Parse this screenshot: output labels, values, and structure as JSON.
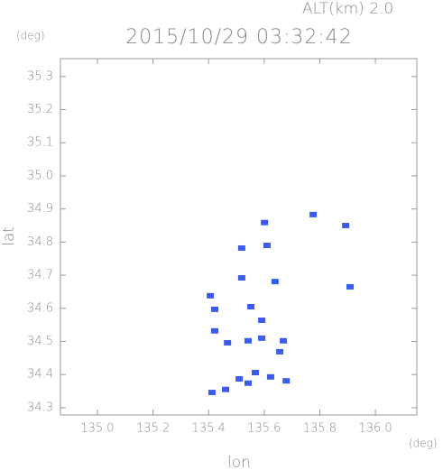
{
  "chart_data": {
    "type": "scatter",
    "annotation": "ALT(km) 2.0",
    "title": "2015/10/29 03:32:42",
    "y_unit": "(deg)",
    "x_unit": "(deg)",
    "xlabel": "lon",
    "ylabel": "lat",
    "color": "#3a5cf0",
    "x": [
      135.776,
      135.893,
      135.601,
      135.61,
      135.519,
      135.519,
      135.639,
      135.909,
      135.406,
      135.552,
      135.591,
      135.422,
      135.542,
      135.591,
      135.656,
      135.669,
      135.568,
      135.623,
      135.542,
      135.461,
      135.412,
      135.51,
      135.679,
      135.468,
      135.422
    ],
    "y": [
      34.883,
      34.85,
      34.859,
      34.79,
      34.782,
      34.692,
      34.681,
      34.665,
      34.638,
      34.605,
      34.564,
      34.597,
      34.502,
      34.51,
      34.469,
      34.502,
      34.406,
      34.393,
      34.374,
      34.355,
      34.346,
      34.387,
      34.381,
      34.496,
      34.532
    ],
    "xlim": [
      134.867,
      136.149
    ],
    "ylim": [
      34.278,
      35.354
    ],
    "xticks": [
      {
        "value": 135.0,
        "label": "135.0"
      },
      135.2,
      135.4,
      135.6,
      135.8,
      {
        "value": 136.0,
        "label": "136.0"
      }
    ],
    "yticks": [
      34.3,
      34.4,
      34.5,
      34.6,
      34.7,
      34.8,
      34.9,
      {
        "value": 35.0,
        "label": "35.0"
      },
      35.1,
      35.2,
      35.3
    ]
  }
}
